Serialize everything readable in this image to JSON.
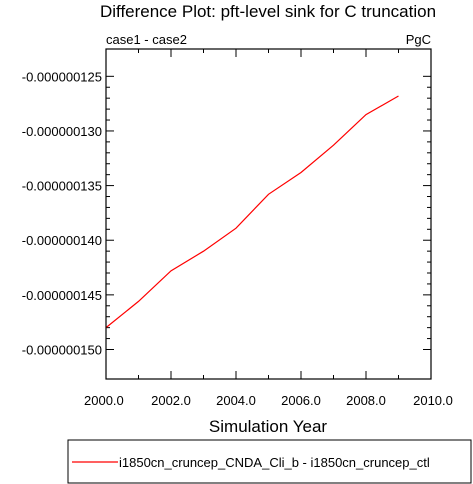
{
  "chart_data": {
    "type": "line",
    "title": "Difference Plot: pft-level sink for C truncation",
    "subtitle_left": "case1 - case2",
    "subtitle_right": "PgC",
    "xlabel": "Simulation Year",
    "ylabel": "",
    "xlim": [
      2000,
      2010
    ],
    "ylim": [
      -1.527e-07,
      -1.225e-07
    ],
    "x_ticks": [
      2000,
      2002,
      2004,
      2006,
      2008,
      2010
    ],
    "x_tick_labels": [
      "2000.0",
      "2002.0",
      "2004.0",
      "2006.0",
      "2008.0",
      "2010.0"
    ],
    "y_ticks": [
      -1.25e-07,
      -1.3e-07,
      -1.35e-07,
      -1.4e-07,
      -1.45e-07,
      -1.5e-07
    ],
    "y_tick_labels": [
      "-0.000000125",
      "-0.000000130",
      "-0.000000135",
      "-0.000000140",
      "-0.000000145",
      "-0.000000150"
    ],
    "grid": false,
    "legend_position": "bottom",
    "series": [
      {
        "name": "i1850cn_cruncep_CNDA_Cli_b - i1850cn_cruncep_ctl",
        "color": "#ff0000",
        "x": [
          2000,
          2001,
          2002,
          2003,
          2004,
          2005,
          2006,
          2007,
          2008,
          2009
        ],
        "y": [
          -1.48e-07,
          -1.456e-07,
          -1.428e-07,
          -1.41e-07,
          -1.389e-07,
          -1.358e-07,
          -1.338e-07,
          -1.313e-07,
          -1.285e-07,
          -1.268e-07
        ]
      }
    ]
  }
}
